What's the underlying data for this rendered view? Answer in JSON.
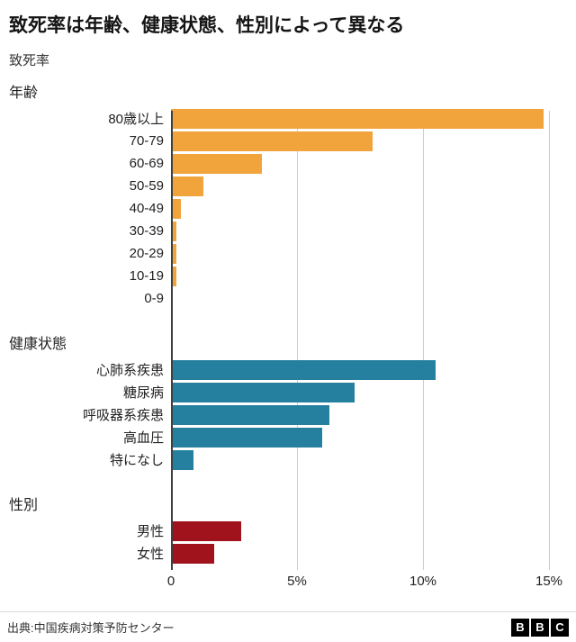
{
  "title": "致死率は年齢、健康状態、性別によって異なる",
  "subtitle": "致死率",
  "axis": {
    "ticks": [
      "0",
      "5%",
      "10%",
      "15%"
    ],
    "max": 15
  },
  "colors": {
    "age": "#f2a43c",
    "health": "#2580a0",
    "sex": "#a0121c",
    "gridline": "#cccccc",
    "axis_line": "#404040"
  },
  "chart_data": [
    {
      "type": "bar",
      "orientation": "horizontal",
      "section_label": "年齢",
      "color_key": "age",
      "categories": [
        "80歳以上",
        "70-79",
        "60-69",
        "50-59",
        "40-49",
        "30-39",
        "20-29",
        "10-19",
        "0-9"
      ],
      "values": [
        14.8,
        8.0,
        3.6,
        1.3,
        0.4,
        0.2,
        0.2,
        0.2,
        0
      ],
      "xlim": [
        0,
        15
      ],
      "xlabel": "",
      "ylabel": ""
    },
    {
      "type": "bar",
      "orientation": "horizontal",
      "section_label": "健康状態",
      "color_key": "health",
      "categories": [
        "心肺系疾患",
        "糖尿病",
        "呼吸器系疾患",
        "高血圧",
        "特になし"
      ],
      "values": [
        10.5,
        7.3,
        6.3,
        6.0,
        0.9
      ],
      "xlim": [
        0,
        15
      ],
      "xlabel": "",
      "ylabel": ""
    },
    {
      "type": "bar",
      "orientation": "horizontal",
      "section_label": "性別",
      "color_key": "sex",
      "categories": [
        "男性",
        "女性"
      ],
      "values": [
        2.8,
        1.7
      ],
      "xlim": [
        0,
        15
      ],
      "xlabel": "",
      "ylabel": ""
    }
  ],
  "footer": {
    "source": "出典:中国疾病対策予防センター",
    "logo_letters": [
      "B",
      "B",
      "C"
    ]
  }
}
